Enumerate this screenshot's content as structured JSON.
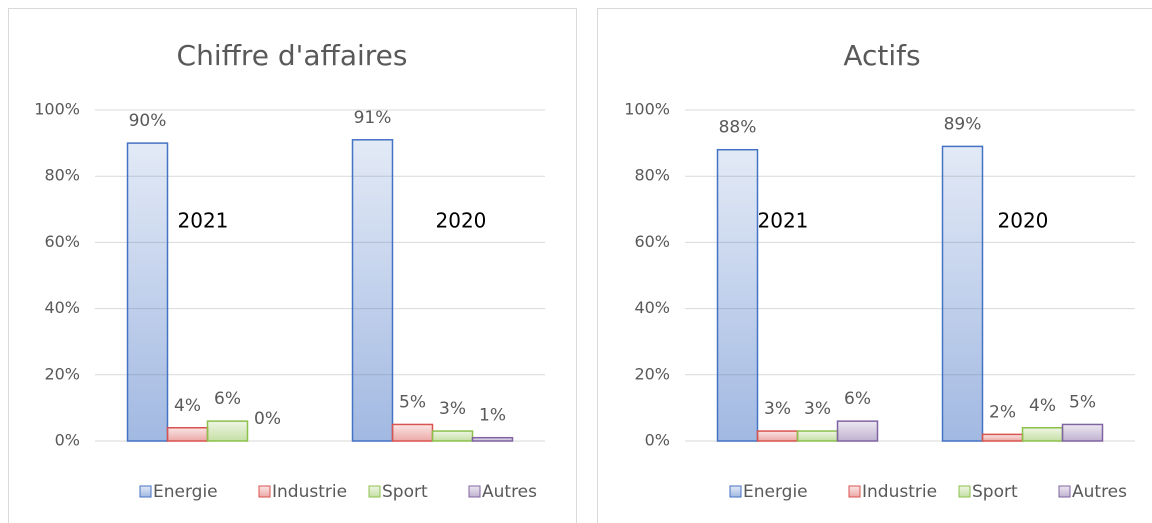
{
  "chart_data": [
    {
      "type": "bar",
      "title": "Chiffre d'affaires",
      "categories": [
        "2021",
        "2020"
      ],
      "series": [
        {
          "name": "Energie",
          "color": "#4472c4",
          "values": [
            90,
            91
          ],
          "value_labels": [
            "90%",
            "91%"
          ]
        },
        {
          "name": "Industrie",
          "color": "#d9534f",
          "values": [
            4,
            5
          ],
          "value_labels": [
            "4%",
            "5%"
          ]
        },
        {
          "name": "Sport",
          "color": "#8cc04b",
          "values": [
            6,
            3
          ],
          "value_labels": [
            "6%",
            "3%"
          ]
        },
        {
          "name": "Autres",
          "color": "#8064a2",
          "values": [
            0,
            1
          ],
          "value_labels": [
            "0%",
            "1%"
          ]
        }
      ],
      "ylim": [
        0,
        100
      ],
      "yticks": [
        {
          "value": 0,
          "label": "0%"
        },
        {
          "value": 20,
          "label": "20%"
        },
        {
          "value": 40,
          "label": "40%"
        },
        {
          "value": 60,
          "label": "60%"
        },
        {
          "value": 80,
          "label": "80%"
        },
        {
          "value": 100,
          "label": "100%"
        }
      ],
      "grid": true,
      "legend": "bottom"
    },
    {
      "type": "bar",
      "title": "Actifs",
      "categories": [
        "2021",
        "2020"
      ],
      "series": [
        {
          "name": "Energie",
          "color": "#4472c4",
          "values": [
            88,
            89
          ],
          "value_labels": [
            "88%",
            "89%"
          ]
        },
        {
          "name": "Industrie",
          "color": "#d9534f",
          "values": [
            3,
            2
          ],
          "value_labels": [
            "3%",
            "2%"
          ]
        },
        {
          "name": "Sport",
          "color": "#8cc04b",
          "values": [
            3,
            4
          ],
          "value_labels": [
            "3%",
            "4%"
          ]
        },
        {
          "name": "Autres",
          "color": "#8064a2",
          "values": [
            6,
            5
          ],
          "value_labels": [
            "6%",
            "5%"
          ]
        }
      ],
      "ylim": [
        0,
        100
      ],
      "yticks": [
        {
          "value": 0,
          "label": "0%"
        },
        {
          "value": 20,
          "label": "20%"
        },
        {
          "value": 40,
          "label": "40%"
        },
        {
          "value": 60,
          "label": "60%"
        },
        {
          "value": 80,
          "label": "80%"
        },
        {
          "value": 100,
          "label": "100%"
        }
      ],
      "grid": true,
      "legend": "bottom"
    }
  ]
}
